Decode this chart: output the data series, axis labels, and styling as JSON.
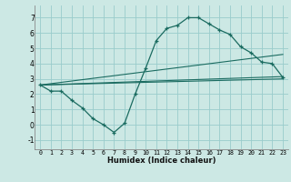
{
  "xlabel": "Humidex (Indice chaleur)",
  "bg_color": "#cce8e4",
  "grid_color": "#99cccc",
  "line_color": "#1a6b60",
  "xlim": [
    -0.5,
    23.5
  ],
  "ylim": [
    -1.6,
    7.8
  ],
  "xticks": [
    0,
    1,
    2,
    3,
    4,
    5,
    6,
    7,
    8,
    9,
    10,
    11,
    12,
    13,
    14,
    15,
    16,
    17,
    18,
    19,
    20,
    21,
    22,
    23
  ],
  "yticks": [
    -1,
    0,
    1,
    2,
    3,
    4,
    5,
    6,
    7
  ],
  "line1_x": [
    0,
    1,
    2,
    3,
    4,
    5,
    6,
    7,
    8,
    9,
    10,
    11,
    12,
    13,
    14,
    15,
    16,
    17,
    18,
    19,
    20,
    21,
    22,
    23
  ],
  "line1_y": [
    2.6,
    2.2,
    2.2,
    1.6,
    1.1,
    0.4,
    0.0,
    -0.5,
    0.1,
    2.0,
    3.7,
    5.5,
    6.3,
    6.5,
    7.0,
    7.0,
    6.6,
    6.2,
    5.9,
    5.1,
    4.7,
    4.1,
    4.0,
    3.1
  ],
  "line2_x": [
    0,
    23
  ],
  "line2_y": [
    2.6,
    4.6
  ],
  "line3_x": [
    0,
    23
  ],
  "line3_y": [
    2.6,
    3.15
  ],
  "line4_x": [
    0,
    23
  ],
  "line4_y": [
    2.6,
    3.0
  ]
}
